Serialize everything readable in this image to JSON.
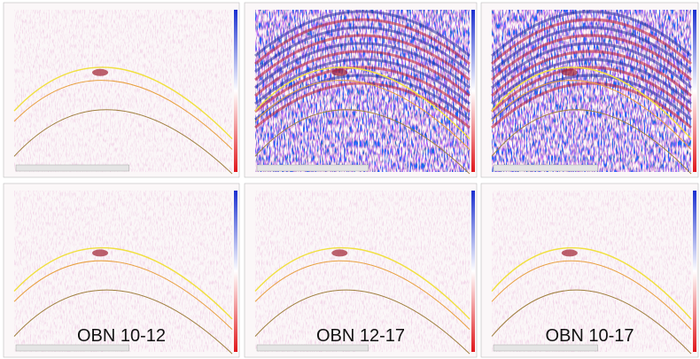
{
  "labels": [
    "OBN 10-12",
    "OBN 12-17",
    "OBN 10-17"
  ]
}
